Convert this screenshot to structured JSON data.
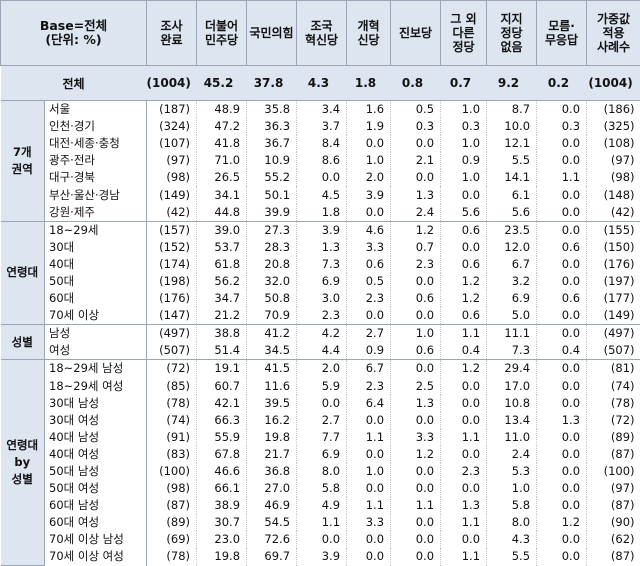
{
  "header": {
    "base_line1": "Base=전체",
    "base_line2": "(단위: %)",
    "columns": [
      [
        "조사",
        "완료"
      ],
      [
        "더불어",
        "민주당"
      ],
      [
        "국민의힘"
      ],
      [
        "조국",
        "혁신당"
      ],
      [
        "개혁",
        "신당"
      ],
      [
        "진보당"
      ],
      [
        "그 외",
        "다른",
        "정당"
      ],
      [
        "지지",
        "정당",
        "없음"
      ],
      [
        "모름·",
        "무응답"
      ],
      [
        "가중값",
        "적용",
        "사례수"
      ]
    ]
  },
  "total": {
    "label": "전체",
    "values": [
      "(1004)",
      "45.2",
      "37.8",
      "4.3",
      "1.8",
      "0.8",
      "0.7",
      "9.2",
      "0.2",
      "(1004)"
    ]
  },
  "groups": [
    {
      "name": [
        "7개",
        "권역"
      ],
      "rows": [
        {
          "label": "서울",
          "values": [
            "(187)",
            "48.9",
            "35.8",
            "3.4",
            "1.6",
            "0.5",
            "1.0",
            "8.7",
            "0.0",
            "(186)"
          ]
        },
        {
          "label": "인천·경기",
          "values": [
            "(324)",
            "47.2",
            "36.3",
            "3.7",
            "1.9",
            "0.3",
            "0.3",
            "10.0",
            "0.3",
            "(325)"
          ]
        },
        {
          "label": "대전·세종·충청",
          "values": [
            "(107)",
            "41.8",
            "36.7",
            "8.4",
            "0.0",
            "0.0",
            "1.0",
            "12.1",
            "0.0",
            "(108)"
          ]
        },
        {
          "label": "광주·전라",
          "values": [
            "(97)",
            "71.0",
            "10.9",
            "8.6",
            "1.0",
            "2.1",
            "0.9",
            "5.5",
            "0.0",
            "(97)"
          ]
        },
        {
          "label": "대구·경북",
          "values": [
            "(98)",
            "26.5",
            "55.2",
            "0.0",
            "2.0",
            "0.0",
            "1.0",
            "14.1",
            "1.1",
            "(98)"
          ]
        },
        {
          "label": "부산·울산·경남",
          "values": [
            "(149)",
            "34.1",
            "50.1",
            "4.5",
            "3.9",
            "1.3",
            "0.0",
            "6.1",
            "0.0",
            "(148)"
          ]
        },
        {
          "label": "강원·제주",
          "values": [
            "(42)",
            "44.8",
            "39.9",
            "1.8",
            "0.0",
            "2.4",
            "5.6",
            "5.6",
            "0.0",
            "(42)"
          ]
        }
      ]
    },
    {
      "name": [
        "연령대"
      ],
      "rows": [
        {
          "label": "18~29세",
          "values": [
            "(157)",
            "39.0",
            "27.3",
            "3.9",
            "4.6",
            "1.2",
            "0.6",
            "23.5",
            "0.0",
            "(155)"
          ]
        },
        {
          "label": "30대",
          "values": [
            "(152)",
            "53.7",
            "28.3",
            "1.3",
            "3.3",
            "0.7",
            "0.0",
            "12.0",
            "0.6",
            "(150)"
          ]
        },
        {
          "label": "40대",
          "values": [
            "(174)",
            "61.8",
            "20.8",
            "7.3",
            "0.6",
            "2.3",
            "0.6",
            "6.7",
            "0.0",
            "(176)"
          ]
        },
        {
          "label": "50대",
          "values": [
            "(198)",
            "56.2",
            "32.0",
            "6.9",
            "0.5",
            "0.0",
            "1.2",
            "3.2",
            "0.0",
            "(197)"
          ]
        },
        {
          "label": "60대",
          "values": [
            "(176)",
            "34.7",
            "50.8",
            "3.0",
            "2.3",
            "0.6",
            "1.2",
            "6.9",
            "0.6",
            "(177)"
          ]
        },
        {
          "label": "70세 이상",
          "values": [
            "(147)",
            "21.2",
            "70.9",
            "2.3",
            "0.0",
            "0.0",
            "0.6",
            "5.0",
            "0.0",
            "(149)"
          ]
        }
      ]
    },
    {
      "name": [
        "성별"
      ],
      "rows": [
        {
          "label": "남성",
          "values": [
            "(497)",
            "38.8",
            "41.2",
            "4.2",
            "2.7",
            "1.0",
            "1.1",
            "11.1",
            "0.0",
            "(497)"
          ]
        },
        {
          "label": "여성",
          "values": [
            "(507)",
            "51.4",
            "34.5",
            "4.4",
            "0.9",
            "0.6",
            "0.4",
            "7.3",
            "0.4",
            "(507)"
          ]
        }
      ]
    },
    {
      "name": [
        "연령대",
        "by",
        "성별"
      ],
      "rows": [
        {
          "label": "18~29세 남성",
          "values": [
            "(72)",
            "19.1",
            "41.5",
            "2.0",
            "6.7",
            "0.0",
            "1.2",
            "29.4",
            "0.0",
            "(81)"
          ]
        },
        {
          "label": "18~29세 여성",
          "values": [
            "(85)",
            "60.7",
            "11.6",
            "5.9",
            "2.3",
            "2.5",
            "0.0",
            "17.0",
            "0.0",
            "(74)"
          ]
        },
        {
          "label": "30대 남성",
          "values": [
            "(78)",
            "42.1",
            "39.5",
            "0.0",
            "6.4",
            "1.3",
            "0.0",
            "10.8",
            "0.0",
            "(78)"
          ]
        },
        {
          "label": "30대 여성",
          "values": [
            "(74)",
            "66.3",
            "16.2",
            "2.7",
            "0.0",
            "0.0",
            "0.0",
            "13.4",
            "1.3",
            "(72)"
          ]
        },
        {
          "label": "40대 남성",
          "values": [
            "(91)",
            "55.9",
            "19.8",
            "7.7",
            "1.1",
            "3.3",
            "1.1",
            "11.0",
            "0.0",
            "(89)"
          ]
        },
        {
          "label": "40대 여성",
          "values": [
            "(83)",
            "67.8",
            "21.7",
            "6.9",
            "0.0",
            "1.2",
            "0.0",
            "2.4",
            "0.0",
            "(87)"
          ]
        },
        {
          "label": "50대 남성",
          "values": [
            "(100)",
            "46.6",
            "36.8",
            "8.0",
            "1.0",
            "0.0",
            "2.3",
            "5.3",
            "0.0",
            "(100)"
          ]
        },
        {
          "label": "50대 여성",
          "values": [
            "(98)",
            "66.1",
            "27.0",
            "5.8",
            "0.0",
            "0.0",
            "0.0",
            "1.0",
            "0.0",
            "(97)"
          ]
        },
        {
          "label": "60대 남성",
          "values": [
            "(87)",
            "38.9",
            "46.9",
            "4.9",
            "1.1",
            "1.1",
            "1.3",
            "5.8",
            "0.0",
            "(87)"
          ]
        },
        {
          "label": "60대 여성",
          "values": [
            "(89)",
            "30.7",
            "54.5",
            "1.1",
            "3.3",
            "0.0",
            "1.1",
            "8.0",
            "1.2",
            "(90)"
          ]
        },
        {
          "label": "70세 이상 남성",
          "values": [
            "(69)",
            "23.0",
            "72.6",
            "0.0",
            "0.0",
            "0.0",
            "0.0",
            "4.3",
            "0.0",
            "(62)"
          ]
        },
        {
          "label": "70세 이상 여성",
          "values": [
            "(78)",
            "19.8",
            "69.7",
            "3.9",
            "0.0",
            "0.0",
            "1.1",
            "5.5",
            "0.0",
            "(87)"
          ]
        }
      ]
    }
  ]
}
